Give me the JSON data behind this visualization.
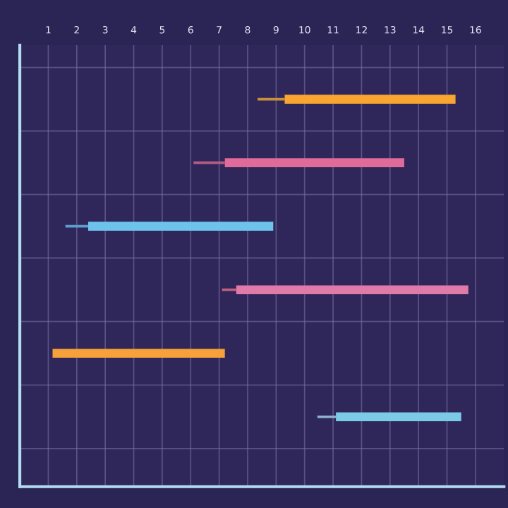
{
  "chart_data": {
    "type": "bar",
    "orientation": "horizontal",
    "categories": [
      null,
      null,
      null,
      null,
      null,
      null
    ],
    "series": [
      {
        "base": [
          8.35,
          6.1,
          1.6,
          7.1,
          null,
          10.45
        ],
        "values": [
          0.95,
          1.1,
          0.8,
          0.5,
          null,
          0.65
        ],
        "colors": [
          "#c9903a",
          "#b85c86",
          "#5d9ccc",
          "#c0607f",
          "#f7a13a",
          "#8fb3cf"
        ]
      },
      {
        "base": [
          9.3,
          7.2,
          2.4,
          7.6,
          1.15,
          11.1
        ],
        "values": [
          6.0,
          6.3,
          6.5,
          8.15,
          6.05,
          4.4
        ],
        "colors": [
          "#f9a531",
          "#e06a9a",
          "#6ec3ec",
          "#e07aa8",
          "#f7a13a",
          "#7ccbe6"
        ]
      }
    ],
    "xlim": [
      0,
      17
    ],
    "xticks": [
      1,
      2,
      3,
      4,
      5,
      6,
      7,
      8,
      9,
      10,
      11,
      12,
      13,
      14,
      15,
      16
    ],
    "grid": true,
    "tick_labels": "x"
  }
}
